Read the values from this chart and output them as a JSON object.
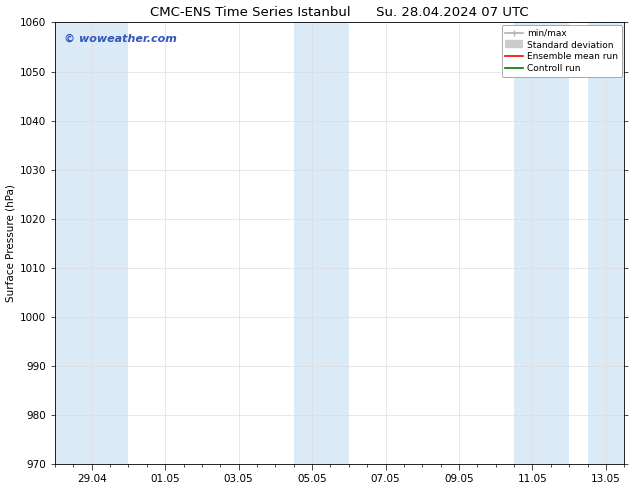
{
  "title_left": "CMC-ENS Time Series Istanbul",
  "title_right": "Su. 28.04.2024 07 UTC",
  "ylabel": "Surface Pressure (hPa)",
  "ylim": [
    970,
    1060
  ],
  "yticks": [
    970,
    980,
    990,
    1000,
    1010,
    1020,
    1030,
    1040,
    1050,
    1060
  ],
  "xlim": [
    0,
    15.5
  ],
  "xtick_positions": [
    1,
    3,
    5,
    7,
    9,
    11,
    13,
    15
  ],
  "xtick_labels": [
    "29.04",
    "01.05",
    "03.05",
    "05.05",
    "07.05",
    "09.05",
    "11.05",
    "13.05"
  ],
  "shaded_regions": [
    {
      "start": 0.0,
      "end": 2.0
    },
    {
      "start": 6.5,
      "end": 8.0
    },
    {
      "start": 12.5,
      "end": 14.0
    },
    {
      "start": 14.5,
      "end": 15.5
    }
  ],
  "shade_color": "#dbeaf7",
  "watermark": "© woweather.com",
  "watermark_color": "#3355bb",
  "legend_items": [
    {
      "label": "min/max",
      "color": "#b0b0b0",
      "lw": 1.2
    },
    {
      "label": "Standard deviation",
      "color": "#cccccc",
      "lw": 6
    },
    {
      "label": "Ensemble mean run",
      "color": "#ff0000",
      "lw": 1.2
    },
    {
      "label": "Controll run",
      "color": "#007700",
      "lw": 1.2
    }
  ],
  "bg_color": "#ffffff",
  "grid_color": "#dddddd",
  "title_fontsize": 9.5,
  "tick_fontsize": 7.5,
  "ylabel_fontsize": 7.5,
  "watermark_fontsize": 8,
  "legend_fontsize": 6.5
}
